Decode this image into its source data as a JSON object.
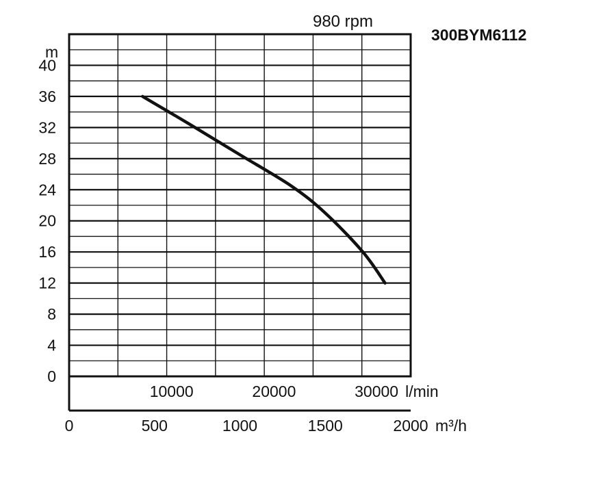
{
  "chart_data": {
    "type": "line",
    "title": "980 rpm",
    "model": "300BYM6112",
    "ylabel": "m",
    "ylim": [
      0,
      44
    ],
    "y_ticks": [
      0,
      4,
      8,
      12,
      16,
      20,
      24,
      28,
      32,
      36,
      40
    ],
    "x_lpm_ticks": [
      {
        "value": 10000,
        "label": "10000"
      },
      {
        "value": 20000,
        "label": "20000"
      },
      {
        "value": 30000,
        "label": "30000"
      }
    ],
    "x_lpm_unit": "l/min",
    "x_m3h_ticks": [
      {
        "value": 0,
        "label": "0"
      },
      {
        "value": 500,
        "label": "500"
      },
      {
        "value": 1000,
        "label": "1000"
      },
      {
        "value": 1500,
        "label": "1500"
      },
      {
        "value": 2000,
        "label": "2000"
      }
    ],
    "x_m3h_unit": "m³/h",
    "xlim_m3h": [
      0,
      2000
    ],
    "grid": true,
    "series": [
      {
        "x_m3h": [
          430,
          700,
          1000,
          1300,
          1500,
          1720,
          1850
        ],
        "y": [
          36,
          32.5,
          28.5,
          24.5,
          21,
          16,
          12
        ]
      }
    ]
  }
}
